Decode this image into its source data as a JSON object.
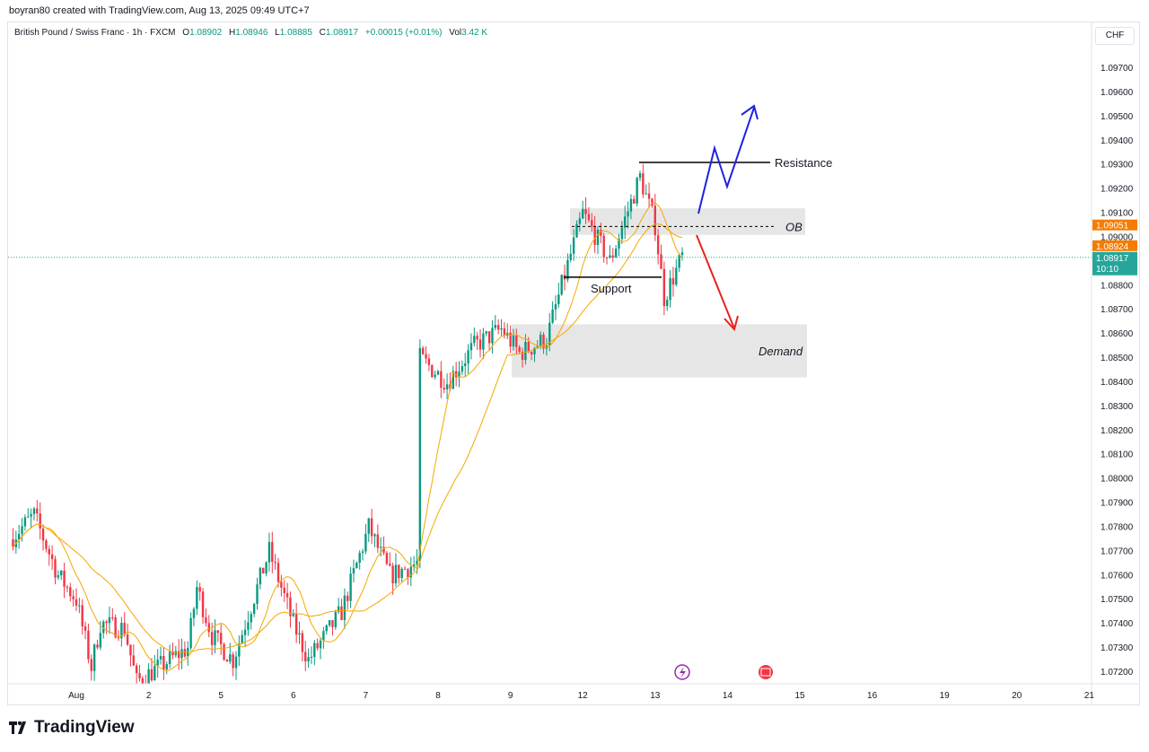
{
  "credit": "boyran80 created with TradingView.com, Aug 13, 2025 09:49 UTC+7",
  "legend": {
    "symbol": "British Pound / Swiss Franc · 1h · FXCM",
    "o_label": "O",
    "o": "1.08902",
    "h_label": "H",
    "h": "1.08946",
    "l_label": "L",
    "l": "1.08885",
    "c_label": "C",
    "c": "1.08917",
    "change": "+0.00015 (+0.01%)",
    "vol_label": "Vol",
    "vol": "3.42 K"
  },
  "currency": "CHF",
  "colors": {
    "up": "#089981",
    "down": "#f23645",
    "ma": "#f7a600",
    "blue_path": "#1e22e0",
    "red_path": "#e8221e",
    "zone": "#e6e6e6",
    "last_price": "#26a69a",
    "orange_label": "#f57c00"
  },
  "chart_data": {
    "type": "candlestick",
    "timeframe": "1h",
    "ylim": [
      1.0715,
      1.098
    ],
    "y_ticks": [
      "1.09700",
      "1.09600",
      "1.09500",
      "1.09400",
      "1.09300",
      "1.09200",
      "1.09100",
      "1.09000",
      "1.08800",
      "1.08700",
      "1.08600",
      "1.08500",
      "1.08400",
      "1.08300",
      "1.08200",
      "1.08100",
      "1.08000",
      "1.07900",
      "1.07800",
      "1.07700",
      "1.07600",
      "1.07500",
      "1.07400",
      "1.07300",
      "1.07200"
    ],
    "x_ticks": [
      "Aug",
      "2",
      "5",
      "6",
      "7",
      "8",
      "9",
      "12",
      "13",
      "14",
      "15",
      "16",
      "19",
      "20",
      "21"
    ],
    "price_path": [
      {
        "day": "31",
        "hour": 2,
        "price": 1.0775
      },
      {
        "day": "31",
        "hour": 10,
        "price": 1.0785
      },
      {
        "day": "31",
        "hour": 18,
        "price": 1.076
      },
      {
        "day": "Aug",
        "hour": 0,
        "price": 1.075
      },
      {
        "day": "Aug",
        "hour": 5,
        "price": 1.0722
      },
      {
        "day": "Aug",
        "hour": 8,
        "price": 1.074
      },
      {
        "day": "Aug",
        "hour": 16,
        "price": 1.0738
      },
      {
        "day": "Aug",
        "hour": 20,
        "price": 1.0716
      },
      {
        "day": "2",
        "hour": 13,
        "price": 1.073
      },
      {
        "day": "2",
        "hour": 16,
        "price": 1.0755
      },
      {
        "day": "2",
        "hour": 21,
        "price": 1.0735
      },
      {
        "day": "5",
        "hour": 4,
        "price": 1.0725
      },
      {
        "day": "5",
        "hour": 16,
        "price": 1.077
      },
      {
        "day": "6",
        "hour": 0,
        "price": 1.074
      },
      {
        "day": "6",
        "hour": 5,
        "price": 1.0725
      },
      {
        "day": "6",
        "hour": 16,
        "price": 1.0745
      },
      {
        "day": "7",
        "hour": 1,
        "price": 1.078
      },
      {
        "day": "7",
        "hour": 8,
        "price": 1.076
      },
      {
        "day": "7",
        "hour": 17,
        "price": 1.0765
      },
      {
        "day": "7",
        "hour": 18,
        "price": 1.085
      },
      {
        "day": "8",
        "hour": 3,
        "price": 1.084
      },
      {
        "day": "8",
        "hour": 12,
        "price": 1.0855
      },
      {
        "day": "8",
        "hour": 21,
        "price": 1.0862
      },
      {
        "day": "9",
        "hour": 3,
        "price": 1.0852
      },
      {
        "day": "9",
        "hour": 12,
        "price": 1.0858
      },
      {
        "day": "9",
        "hour": 17,
        "price": 1.088
      },
      {
        "day": "12",
        "hour": 0,
        "price": 1.091
      },
      {
        "day": "12",
        "hour": 9,
        "price": 1.089
      },
      {
        "day": "12",
        "hour": 19,
        "price": 1.0925
      },
      {
        "day": "13",
        "hour": 0,
        "price": 1.0905
      },
      {
        "day": "13",
        "hour": 3,
        "price": 1.0875
      },
      {
        "day": "13",
        "hour": 9,
        "price": 1.0892
      }
    ],
    "price_labels": [
      {
        "value": "1.09051",
        "price": 1.09051,
        "color": "orange"
      },
      {
        "value": "1.08924",
        "price": 1.08924,
        "color": "orange"
      },
      {
        "value": "1.08917",
        "price": 1.08917,
        "color": "teal",
        "countdown": "10:10"
      }
    ],
    "annotations": {
      "resistance": {
        "label": "Resistance",
        "price": 1.0931
      },
      "support": {
        "label": "Support",
        "price": 1.08835
      },
      "ob": {
        "label": "OB",
        "top": 1.0912,
        "bottom": 1.0901,
        "mid": 1.09045
      },
      "demand": {
        "label": "Demand",
        "top": 1.0864,
        "bottom": 1.0842
      }
    }
  },
  "logo": "TradingView"
}
